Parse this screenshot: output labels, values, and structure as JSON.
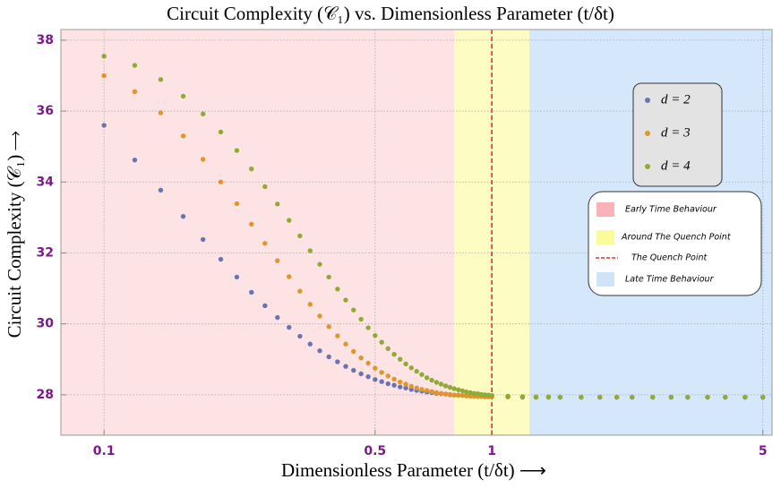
{
  "chart_data": {
    "type": "scatter",
    "title": "Circuit Complexity (𝒞₁) vs. Dimensionless Parameter (t/δt)",
    "x_label": "Dimensionless Parameter (t/δt) ⟶",
    "y_label": "Circuit Complexity (𝒞₁) ⟶",
    "x_scale": "log",
    "grid": true,
    "xlim": [
      0.0774,
      5.28
    ],
    "ylim": [
      26.86,
      38.3
    ],
    "xticks": [
      0.1,
      0.5,
      1,
      5
    ],
    "yticks": [
      28,
      30,
      32,
      34,
      36,
      38
    ],
    "regions": [
      {
        "label": "Early Time Behaviour",
        "color": "#fde3e3",
        "from": 0.0774,
        "to": 0.8
      },
      {
        "label": "Around The Quench Point",
        "color": "#fdfcc2",
        "from": 0.8,
        "to": 1.25
      },
      {
        "label": "Late Time Behaviour",
        "color": "#d4e7fb",
        "from": 1.25,
        "to": 5.28
      }
    ],
    "quench_line": {
      "label": "The Quench Point",
      "x": 1,
      "color": "#e83030"
    },
    "x": [
      0.1,
      0.12,
      0.14,
      0.16,
      0.18,
      0.2,
      0.22,
      0.24,
      0.26,
      0.28,
      0.3,
      0.32,
      0.34,
      0.36,
      0.38,
      0.4,
      0.42,
      0.44,
      0.46,
      0.48,
      0.5,
      0.52,
      0.54,
      0.56,
      0.58,
      0.6,
      0.62,
      0.64,
      0.66,
      0.68,
      0.7,
      0.72,
      0.74,
      0.76,
      0.78,
      0.8,
      0.82,
      0.84,
      0.86,
      0.88,
      0.9,
      0.92,
      0.94,
      0.96,
      0.98,
      1.0,
      1.1,
      1.2,
      1.3,
      1.4,
      1.5,
      1.7,
      1.9,
      2.1,
      2.3,
      2.6,
      2.9,
      3.2,
      3.6,
      4.0,
      4.5,
      5.0
    ],
    "series": [
      {
        "name": "d = 2",
        "color": "#6b74b2",
        "values": [
          35.6,
          34.62,
          33.77,
          33.03,
          32.38,
          31.82,
          31.32,
          30.89,
          30.51,
          30.18,
          29.9,
          29.65,
          29.43,
          29.24,
          29.07,
          28.93,
          28.8,
          28.69,
          28.59,
          28.51,
          28.43,
          28.37,
          28.31,
          28.27,
          28.22,
          28.19,
          28.15,
          28.12,
          28.1,
          28.08,
          28.06,
          28.04,
          28.03,
          28.02,
          28.0,
          27.99,
          27.99,
          27.98,
          27.97,
          27.97,
          27.96,
          27.96,
          27.96,
          27.95,
          27.95,
          27.95,
          27.94,
          27.93,
          27.93,
          27.93,
          27.93,
          27.93,
          27.93,
          27.93,
          27.93,
          27.93,
          27.93,
          27.93,
          27.93,
          27.93,
          27.93,
          27.93
        ]
      },
      {
        "name": "d = 3",
        "color": "#e0962b",
        "values": [
          37.0,
          36.55,
          35.95,
          35.3,
          34.64,
          34.0,
          33.39,
          32.81,
          32.27,
          31.78,
          31.33,
          30.92,
          30.55,
          30.22,
          29.92,
          29.66,
          29.43,
          29.22,
          29.04,
          28.89,
          28.75,
          28.63,
          28.53,
          28.44,
          28.36,
          28.3,
          28.24,
          28.19,
          28.15,
          28.12,
          28.09,
          28.06,
          28.04,
          28.02,
          28.01,
          27.99,
          27.98,
          27.98,
          27.97,
          27.96,
          27.96,
          27.95,
          27.95,
          27.94,
          27.94,
          27.94,
          27.94,
          27.94,
          27.93,
          27.93,
          27.93,
          27.93,
          27.93,
          27.93,
          27.93,
          27.93,
          27.93,
          27.93,
          27.93,
          27.93,
          27.93,
          27.93
        ]
      },
      {
        "name": "d = 4",
        "color": "#8fab36",
        "values": [
          37.55,
          37.29,
          36.89,
          36.42,
          35.92,
          35.41,
          34.89,
          34.37,
          33.87,
          33.38,
          32.92,
          32.48,
          32.06,
          31.68,
          31.32,
          30.98,
          30.67,
          30.39,
          30.13,
          29.89,
          29.67,
          29.48,
          29.3,
          29.14,
          29.0,
          28.87,
          28.76,
          28.66,
          28.57,
          28.48,
          28.41,
          28.35,
          28.3,
          28.25,
          28.21,
          28.17,
          28.14,
          28.11,
          28.08,
          28.06,
          28.04,
          28.03,
          28.01,
          28.0,
          27.99,
          27.98,
          27.96,
          27.95,
          27.94,
          27.94,
          27.93,
          27.93,
          27.93,
          27.93,
          27.93,
          27.93,
          27.93,
          27.93,
          27.93,
          27.93,
          27.93,
          27.93
        ]
      }
    ]
  }
}
